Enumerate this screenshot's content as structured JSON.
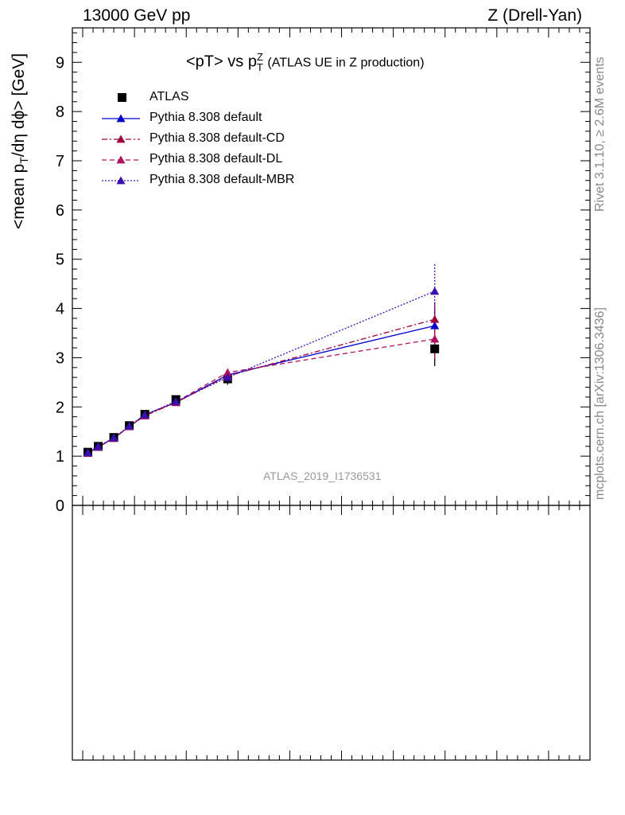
{
  "header": {
    "left": "13000 GeV pp",
    "right": "Z (Drell-Yan)"
  },
  "side_text": {
    "rivet": "Rivet 3.1.10, ≥ 2.6M events",
    "mcplots": "mcplots.cern.ch [arXiv:1306.3436]"
  },
  "chart_data": {
    "type": "line",
    "title": {
      "main": "<pT> vs p",
      "sup": "Z",
      "sub": "T",
      "note": "(ATLAS UE in Z production)"
    },
    "ylabel": {
      "pre": "<mean p",
      "sub": "T",
      "post": "/dη dϕ> [GeV]"
    },
    "xlabel": "",
    "ylim": [
      0,
      9.7
    ],
    "xlim": [
      0,
      100
    ],
    "y_ticks": [
      "0",
      "1",
      "2",
      "3",
      "4",
      "5",
      "6",
      "7",
      "8",
      "9"
    ],
    "watermark": "ATLAS_2019_I1736531",
    "legend_position": "top-left",
    "series": [
      {
        "name": "ATLAS",
        "style": "data",
        "color": "#000000",
        "x": [
          3,
          5,
          8,
          11,
          14,
          20,
          30,
          70
        ],
        "y": [
          1.08,
          1.2,
          1.38,
          1.62,
          1.85,
          2.15,
          2.57,
          3.18
        ],
        "yerr": [
          0.03,
          0.03,
          0.03,
          0.04,
          0.05,
          0.06,
          0.12,
          0.35
        ]
      },
      {
        "name": "Pythia 8.308 default",
        "style": "solid",
        "color": "#0000cc",
        "x": [
          3,
          5,
          8,
          11,
          14,
          20,
          30,
          70
        ],
        "y": [
          1.07,
          1.18,
          1.37,
          1.6,
          1.84,
          2.09,
          2.65,
          3.65
        ],
        "yerr": [
          0.01,
          0.01,
          0.01,
          0.02,
          0.02,
          0.03,
          0.06,
          0.35
        ]
      },
      {
        "name": "Pythia 8.308 default-CD",
        "style": "dashdot",
        "color": "#a0003c",
        "x": [
          3,
          5,
          8,
          11,
          14,
          20,
          30,
          70
        ],
        "y": [
          1.06,
          1.19,
          1.36,
          1.6,
          1.82,
          2.09,
          2.63,
          3.78
        ],
        "yerr": [
          0.01,
          0.01,
          0.01,
          0.02,
          0.02,
          0.03,
          0.06,
          0.35
        ]
      },
      {
        "name": "Pythia 8.308 default-DL",
        "style": "dashed",
        "color": "#b01060",
        "x": [
          3,
          5,
          8,
          11,
          14,
          20,
          30,
          70
        ],
        "y": [
          1.06,
          1.19,
          1.37,
          1.6,
          1.83,
          2.1,
          2.7,
          3.38
        ],
        "yerr": [
          0.01,
          0.01,
          0.01,
          0.02,
          0.02,
          0.03,
          0.06,
          0.4
        ]
      },
      {
        "name": "Pythia 8.308 default-MBR",
        "style": "dotted",
        "color": "#3a0fb0",
        "x": [
          3,
          5,
          8,
          11,
          14,
          20,
          30,
          70
        ],
        "y": [
          1.07,
          1.2,
          1.37,
          1.61,
          1.84,
          2.11,
          2.6,
          4.35
        ],
        "yerr": [
          0.01,
          0.01,
          0.01,
          0.02,
          0.02,
          0.03,
          0.06,
          0.55
        ]
      }
    ]
  }
}
